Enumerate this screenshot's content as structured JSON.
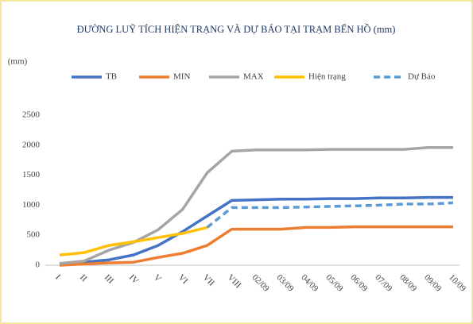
{
  "chart_data": {
    "type": "line",
    "title": "ĐƯỜNG LUỸ TÍCH HIỆN TRẠNG VÀ DỰ BÁO TẠI TRẠM BẾN HỒ (mm)",
    "y_label": "(mm)",
    "categories": [
      "I",
      "II",
      "III",
      "IV",
      "V",
      "VI",
      "VII",
      "VIII",
      "02/09",
      "03/09",
      "04/09",
      "05/09",
      "06/09",
      "07/09",
      "08/09",
      "09/09",
      "10/09"
    ],
    "series": [
      {
        "name": "TB",
        "color": "#4472c4",
        "line_style": "solid",
        "values": [
          20,
          50,
          90,
          170,
          330,
          560,
          820,
          1080,
          1090,
          1100,
          1100,
          1110,
          1110,
          1120,
          1120,
          1130,
          1130
        ]
      },
      {
        "name": "MIN",
        "color": "#ed7d31",
        "line_style": "solid",
        "values": [
          0,
          20,
          40,
          50,
          130,
          200,
          330,
          600,
          600,
          600,
          630,
          630,
          640,
          640,
          640,
          640,
          640
        ]
      },
      {
        "name": "MAX",
        "color": "#a5a5a5",
        "line_style": "solid",
        "values": [
          30,
          70,
          250,
          380,
          590,
          930,
          1540,
          1900,
          1920,
          1920,
          1920,
          1930,
          1930,
          1930,
          1930,
          1960,
          1960
        ]
      },
      {
        "name": "Hiện trạng",
        "color": "#ffc000",
        "line_style": "solid",
        "values": [
          170,
          210,
          330,
          390,
          460,
          530,
          630,
          null,
          null,
          null,
          null,
          null,
          null,
          null,
          null,
          null,
          null
        ]
      },
      {
        "name": "Dự Báo",
        "color": "#5b9bd5",
        "line_style": "dashed",
        "values": [
          null,
          null,
          null,
          null,
          null,
          null,
          630,
          960,
          960,
          960,
          970,
          980,
          990,
          1000,
          1020,
          1020,
          1040
        ]
      }
    ],
    "ylim": [
      0,
      2500
    ],
    "yticks": [
      0,
      500,
      1000,
      1500,
      2000,
      2500
    ],
    "grid": false,
    "legend": "top"
  }
}
